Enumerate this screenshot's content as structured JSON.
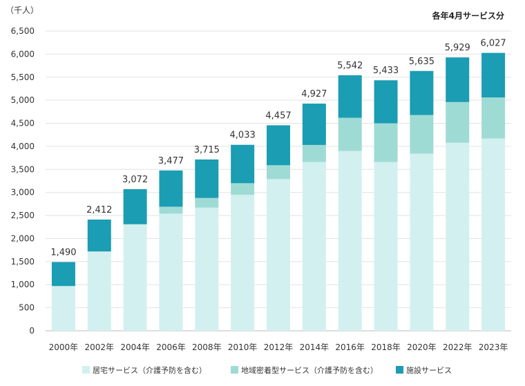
{
  "chart_data": {
    "type": "bar",
    "stacked": true,
    "unit_label": "（千人）",
    "note": "各年4月サービス分",
    "categories": [
      "2000年",
      "2002年",
      "2004年",
      "2006年",
      "2008年",
      "2010年",
      "2012年",
      "2014年",
      "2016年",
      "2018年",
      "2020年",
      "2022年",
      "2023年"
    ],
    "series": [
      {
        "name": "居宅サービス（介護予防を含む）",
        "color": "#d2f0ef",
        "values": [
          970,
          1720,
          2310,
          2540,
          2670,
          2950,
          3290,
          3660,
          3900,
          3660,
          3840,
          4080,
          4170
        ]
      },
      {
        "name": "地域密着型サービス（介護予防を含む）",
        "color": "#9fdbd5",
        "values": [
          0,
          0,
          0,
          150,
          210,
          250,
          300,
          370,
          720,
          840,
          840,
          880,
          890
        ]
      },
      {
        "name": "施設サービス",
        "color": "#1b9db3",
        "values": [
          520,
          692,
          762,
          787,
          835,
          833,
          867,
          897,
          922,
          933,
          955,
          969,
          967
        ]
      }
    ],
    "totals": [
      1490,
      2412,
      3072,
      3477,
      3715,
      4033,
      4457,
      4927,
      5542,
      5433,
      5635,
      5929,
      6027
    ],
    "ylim": [
      0,
      6500
    ],
    "yticks": [
      0,
      500,
      1000,
      1500,
      2000,
      2500,
      3000,
      3500,
      4000,
      4500,
      5000,
      5500,
      6000,
      6500
    ],
    "grid": true,
    "legend_position": "bottom"
  }
}
